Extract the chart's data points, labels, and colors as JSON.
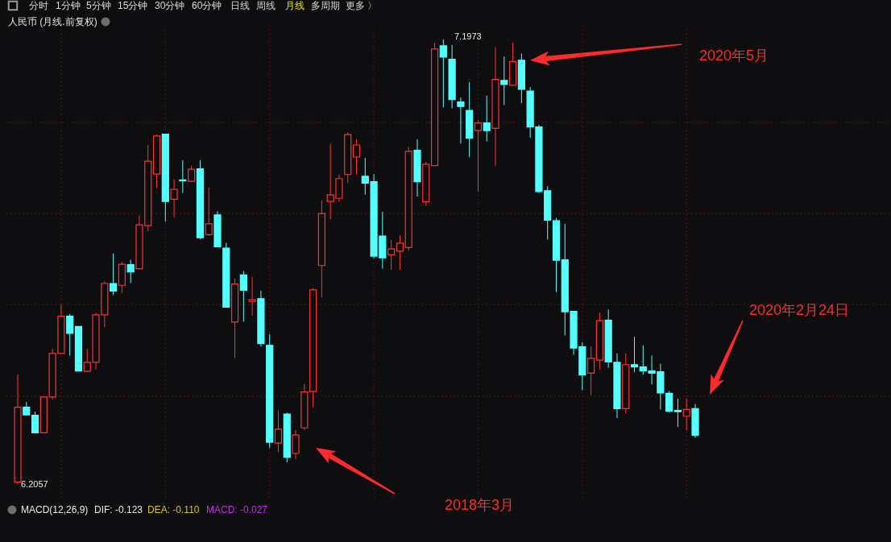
{
  "chart_data": {
    "type": "candlestick",
    "title": "人民币 (月线.前复权)",
    "categories": [
      null,
      null,
      null,
      null,
      null,
      null,
      null,
      null,
      null,
      null,
      null,
      null,
      null,
      null,
      null,
      null,
      null,
      null,
      null,
      null,
      null,
      null,
      null,
      null,
      null,
      null,
      null,
      null,
      null,
      null,
      null,
      null,
      null,
      null,
      null,
      null,
      null,
      null,
      null,
      null,
      null,
      null,
      null,
      null,
      null,
      null,
      null,
      null,
      null,
      null,
      null,
      null,
      null,
      null,
      null,
      null,
      null,
      null,
      null,
      null,
      null,
      null,
      null,
      null,
      null,
      null,
      null,
      null,
      null,
      null,
      null,
      null,
      null,
      null,
      null,
      null,
      null,
      null,
      null
    ],
    "ohlc": [
      [
        6.21,
        6.45,
        6.2057,
        6.377
      ],
      [
        6.377,
        6.389,
        6.358,
        6.36
      ],
      [
        6.359,
        6.367,
        6.32,
        6.32
      ],
      [
        6.32,
        6.4,
        6.32,
        6.4
      ],
      [
        6.4,
        6.507,
        6.394,
        6.497
      ],
      [
        6.497,
        6.607,
        6.497,
        6.58
      ],
      [
        6.58,
        6.585,
        6.492,
        6.542
      ],
      [
        6.557,
        6.557,
        6.458,
        6.458
      ],
      [
        6.457,
        6.507,
        6.457,
        6.477
      ],
      [
        6.477,
        6.588,
        6.461,
        6.583
      ],
      [
        6.583,
        6.658,
        6.556,
        6.653
      ],
      [
        6.653,
        6.72,
        6.627,
        6.636
      ],
      [
        6.649,
        6.701,
        6.632,
        6.696
      ],
      [
        6.695,
        6.706,
        6.654,
        6.679
      ],
      [
        6.686,
        6.805,
        6.686,
        6.784
      ],
      [
        6.782,
        6.962,
        6.77,
        6.926
      ],
      [
        6.897,
        6.985,
        6.866,
        6.982
      ],
      [
        6.986,
        6.987,
        6.791,
        6.836
      ],
      [
        6.841,
        6.885,
        6.801,
        6.863
      ],
      [
        6.884,
        6.928,
        6.855,
        6.882
      ],
      [
        6.881,
        6.916,
        6.881,
        6.908
      ],
      [
        6.909,
        6.928,
        6.752,
        6.755
      ],
      [
        6.762,
        6.867,
        6.759,
        6.786
      ],
      [
        6.806,
        6.814,
        6.735,
        6.735
      ],
      [
        6.732,
        6.744,
        6.6,
        6.6
      ],
      [
        6.567,
        6.664,
        6.487,
        6.652
      ],
      [
        6.672,
        6.681,
        6.568,
        6.638
      ],
      [
        6.613,
        6.668,
        6.581,
        6.617
      ],
      [
        6.619,
        6.637,
        6.512,
        6.519
      ],
      [
        6.515,
        6.54,
        6.286,
        6.299
      ],
      [
        6.297,
        6.37,
        6.277,
        6.328
      ],
      [
        6.362,
        6.365,
        6.254,
        6.265
      ],
      [
        6.274,
        6.326,
        6.261,
        6.315
      ],
      [
        6.331,
        6.429,
        6.326,
        6.411
      ],
      [
        6.412,
        6.643,
        6.377,
        6.639
      ],
      [
        6.693,
        6.839,
        6.622,
        6.809
      ],
      [
        6.836,
        6.964,
        6.796,
        6.851
      ],
      [
        6.843,
        6.896,
        6.835,
        6.887
      ],
      [
        6.896,
        6.99,
        6.877,
        6.985
      ],
      [
        6.935,
        6.975,
        6.896,
        6.962
      ],
      [
        6.892,
        6.933,
        6.851,
        6.877
      ],
      [
        6.88,
        6.897,
        6.709,
        6.714
      ],
      [
        6.759,
        6.813,
        6.686,
        6.71
      ],
      [
        6.717,
        6.75,
        6.684,
        6.73
      ],
      [
        6.725,
        6.761,
        6.684,
        6.743
      ],
      [
        6.733,
        6.958,
        6.726,
        6.948
      ],
      [
        6.95,
        6.975,
        6.847,
        6.88
      ],
      [
        6.835,
        6.924,
        6.826,
        6.919
      ],
      [
        6.916,
        7.19,
        6.916,
        7.176
      ],
      [
        7.183,
        7.1973,
        7.046,
        7.158
      ],
      [
        7.153,
        7.185,
        7.044,
        7.063
      ],
      [
        7.058,
        7.068,
        6.965,
        7.048
      ],
      [
        7.039,
        7.102,
        6.935,
        6.977
      ],
      [
        6.994,
        7.017,
        6.857,
        7.011
      ],
      [
        7.011,
        7.072,
        6.97,
        6.994
      ],
      [
        6.999,
        7.18,
        6.916,
        7.108
      ],
      [
        7.106,
        7.159,
        7.051,
        7.097
      ],
      [
        7.095,
        7.19,
        7.095,
        7.148
      ],
      [
        7.151,
        7.166,
        7.055,
        7.086
      ],
      [
        7.082,
        7.091,
        6.978,
        7.002
      ],
      [
        7.002,
        7.007,
        6.855,
        6.858
      ],
      [
        6.86,
        6.87,
        6.751,
        6.794
      ],
      [
        6.793,
        6.799,
        6.634,
        6.705
      ],
      [
        6.706,
        6.786,
        6.537,
        6.59
      ],
      [
        6.591,
        6.591,
        6.494,
        6.509
      ],
      [
        6.512,
        6.522,
        6.415,
        6.449
      ],
      [
        6.453,
        6.512,
        6.404,
        6.486
      ],
      [
        6.482,
        6.588,
        6.461,
        6.57
      ],
      [
        6.571,
        6.595,
        6.465,
        6.478
      ],
      [
        6.477,
        6.497,
        6.353,
        6.374
      ],
      [
        6.374,
        6.497,
        6.363,
        6.472
      ],
      [
        6.472,
        6.534,
        6.455,
        6.467
      ],
      [
        6.467,
        6.515,
        6.45,
        6.458
      ],
      [
        6.458,
        6.492,
        6.428,
        6.453
      ],
      [
        6.456,
        6.474,
        6.372,
        6.409
      ],
      [
        6.408,
        6.413,
        6.365,
        6.368
      ],
      [
        6.37,
        6.396,
        6.333,
        6.367
      ],
      [
        6.357,
        6.397,
        6.326,
        6.372
      ],
      [
        6.374,
        6.384,
        6.309,
        6.314
      ]
    ],
    "colors": [
      "#ff3232",
      "#54ffff",
      "#54ffff",
      "#ff3232",
      "#ff3232",
      "#ff3232",
      "#54ffff",
      "#54ffff",
      "#ff3232",
      "#ff3232",
      "#ff3232",
      "#54ffff",
      "#ff3232",
      "#54ffff",
      "#ff3232",
      "#ff3232",
      "#ff3232",
      "#54ffff",
      "#ff3232",
      "#54ffff",
      "#ff3232",
      "#54ffff",
      "#ff3232",
      "#54ffff",
      "#54ffff",
      "#ff3232",
      "#54ffff",
      "#ff3232",
      "#54ffff",
      "#54ffff",
      "#ff3232",
      "#54ffff",
      "#ff3232",
      "#ff3232",
      "#ff3232",
      "#ff3232",
      "#ff3232",
      "#ff3232",
      "#ff3232",
      "#ff3232",
      "#54ffff",
      "#54ffff",
      "#54ffff",
      "#ff3232",
      "#ff3232",
      "#ff3232",
      "#54ffff",
      "#ff3232",
      "#ff3232",
      "#54ffff",
      "#54ffff",
      "#54ffff",
      "#54ffff",
      "#ff3232",
      "#54ffff",
      "#ff3232",
      "#54ffff",
      "#ff3232",
      "#54ffff",
      "#54ffff",
      "#54ffff",
      "#54ffff",
      "#54ffff",
      "#54ffff",
      "#54ffff",
      "#54ffff",
      "#ff3232",
      "#ff3232",
      "#54ffff",
      "#54ffff",
      "#ff3232",
      "#54ffff",
      "#54ffff",
      "#54ffff",
      "#54ffff",
      "#54ffff",
      "#54ffff",
      "#ff3232",
      "#54ffff"
    ],
    "annotations": [
      "分时",
      "1分钟",
      "5分钟",
      "15分钟",
      "30分钟",
      "60分钟",
      "日线",
      "周线",
      "月线",
      "多周期",
      "更多 〉",
      "MACD(12,26,9)",
      "DIF: -0.123",
      "DEA: -0.110",
      "MACD: -0.027",
      "2020年5月",
      "2018年3月",
      "2020年2月24日",
      "7.1973",
      "6.2057"
    ],
    "grid": true
  }
}
